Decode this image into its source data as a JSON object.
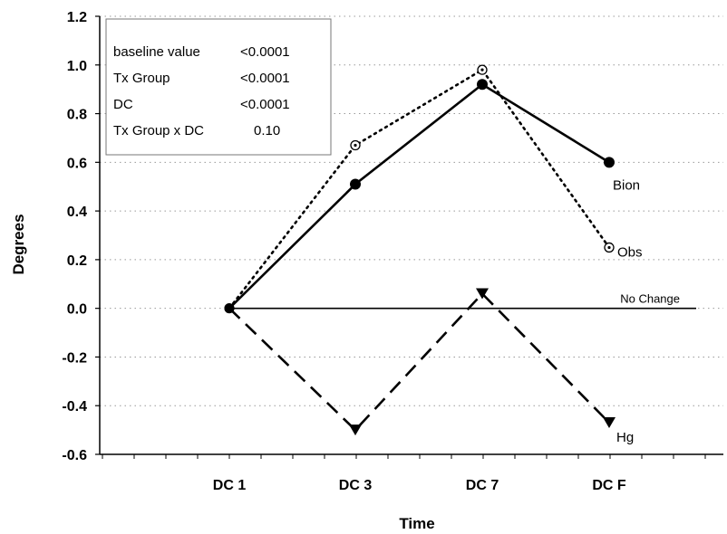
{
  "chart_data": {
    "type": "line",
    "title": "",
    "xlabel": "Time",
    "ylabel": "Degrees",
    "categories": [
      "DC 1",
      "DC 3",
      "DC 7",
      "DC F"
    ],
    "ylim": [
      -0.6,
      1.2
    ],
    "yticks": [
      "1.2",
      "1.0",
      "0.8",
      "0.6",
      "0.4",
      "0.2",
      "0.0",
      "-0.2",
      "-0.4",
      "-0.6"
    ],
    "grid": "horizontal dotted",
    "series": [
      {
        "name": "Bion",
        "values": [
          0.0,
          0.51,
          0.92,
          0.6
        ],
        "style": "solid",
        "marker": "filled-circle",
        "color": "#000000"
      },
      {
        "name": "Obs",
        "values": [
          0.0,
          0.67,
          0.98,
          0.25
        ],
        "style": "dotted",
        "marker": "open-circle-dot",
        "color": "#000000"
      },
      {
        "name": "Hg",
        "values": [
          0.0,
          -0.5,
          0.06,
          -0.47
        ],
        "style": "dashed",
        "marker": "filled-triangle-down",
        "color": "#000000"
      }
    ],
    "reference_line": {
      "label": "No Change",
      "value": 0.0
    },
    "stats_table": {
      "rows": [
        {
          "label": "baseline value",
          "value": "<0.0001"
        },
        {
          "label": "Tx Group",
          "value": "<0.0001"
        },
        {
          "label": "DC",
          "value": "<0.0001"
        },
        {
          "label": "Tx Group x DC",
          "value": "0.10"
        }
      ]
    }
  }
}
